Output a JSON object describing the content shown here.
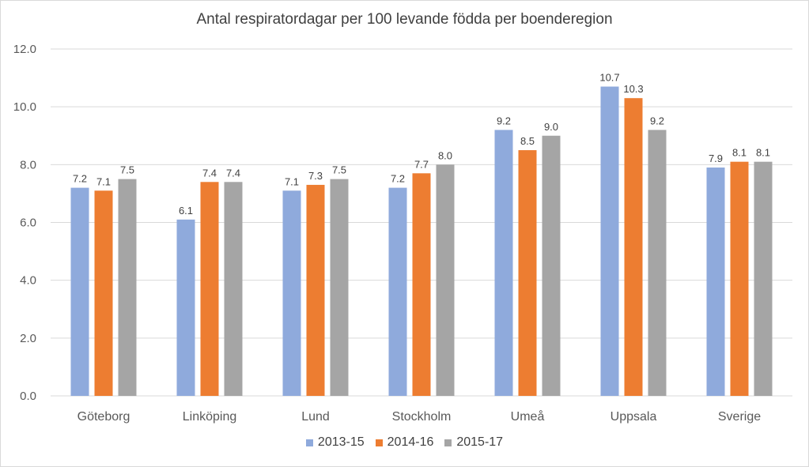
{
  "chart_data": {
    "type": "bar",
    "title": "Antal respiratordagar per 100 levande födda per boenderegion",
    "xlabel": "",
    "ylabel": "",
    "ylim": [
      0,
      12
    ],
    "yticks": [
      "0.0",
      "2.0",
      "4.0",
      "6.0",
      "8.0",
      "10.0",
      "12.0"
    ],
    "grid": true,
    "legend_position": "bottom",
    "categories": [
      "Göteborg",
      "Linköping",
      "Lund",
      "Stockholm",
      "Umeå",
      "Uppsala",
      "Sverige"
    ],
    "series": [
      {
        "name": "2013-15",
        "color": "#8faadc",
        "values": [
          7.2,
          6.1,
          7.1,
          7.2,
          9.2,
          10.7,
          7.9
        ]
      },
      {
        "name": "2014-16",
        "color": "#ed7d31",
        "values": [
          7.1,
          7.4,
          7.3,
          7.7,
          8.5,
          10.3,
          8.1
        ]
      },
      {
        "name": "2015-17",
        "color": "#a5a5a5",
        "values": [
          7.5,
          7.4,
          7.5,
          8.0,
          9.0,
          9.2,
          8.1
        ]
      }
    ]
  }
}
